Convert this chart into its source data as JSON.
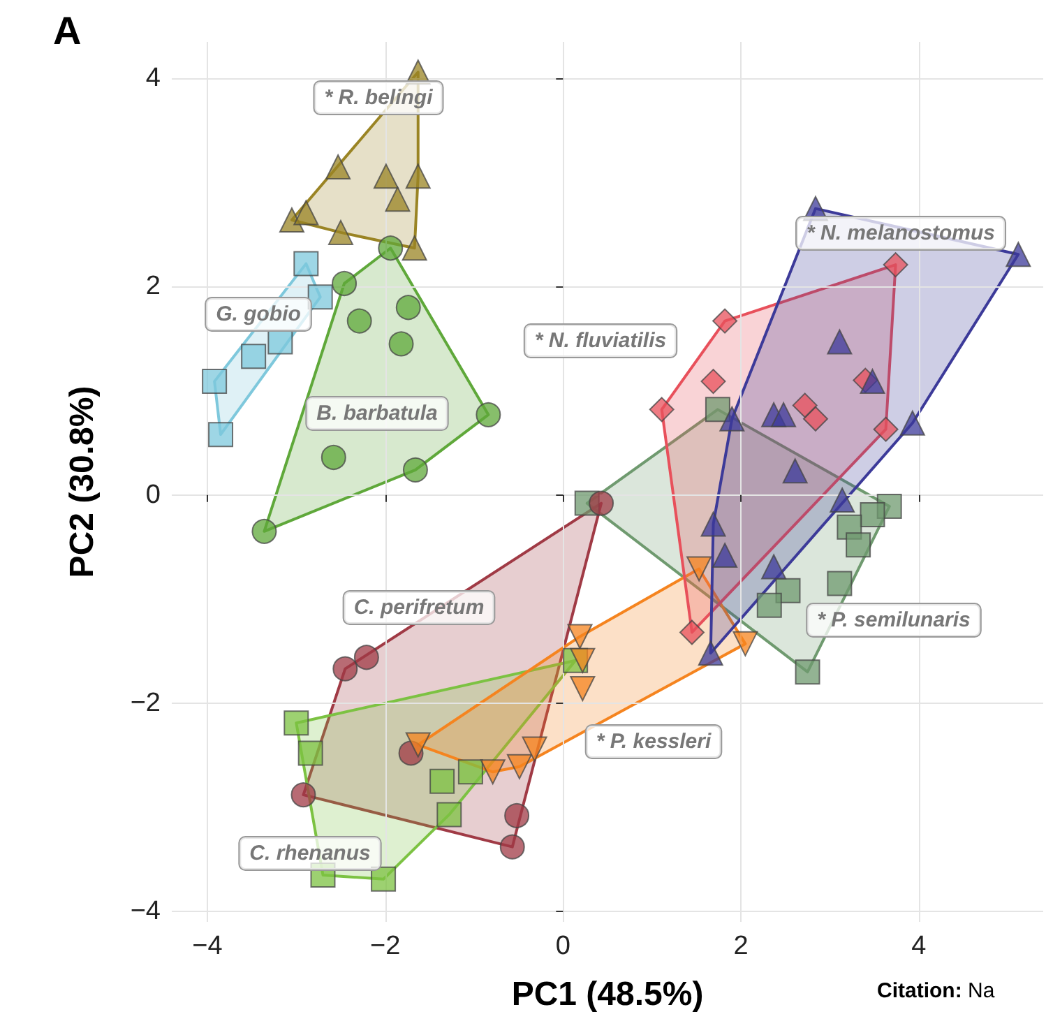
{
  "chart_data": {
    "type": "scatter",
    "xlabel": "PC1 (48.5%)",
    "ylabel": "PC2 (30.8%)",
    "xlim": [
      -4.4,
      5.4
    ],
    "ylim": [
      -4.1,
      4.35
    ],
    "xticks": [
      -4,
      -2,
      0,
      2,
      4
    ],
    "yticks": [
      -4,
      -2,
      0,
      2,
      4
    ],
    "grid": true,
    "legend": false,
    "series": [
      {
        "name": "* R. belingi",
        "color": "#9a8424",
        "marker": "triangle",
        "x": [
          -1.63,
          -2.53,
          -1.99,
          -1.63,
          -1.86,
          -3.05,
          -2.89,
          -2.5,
          -1.67
        ],
        "values": [
          4.06,
          3.15,
          3.06,
          3.06,
          2.84,
          2.64,
          2.71,
          2.52,
          2.37
        ]
      },
      {
        "name": "G. gobio",
        "color": "#7ec8dc",
        "marker": "square",
        "x": [
          -2.89,
          -2.73,
          -3.18,
          -3.48,
          -3.92,
          -3.85
        ],
        "values": [
          2.22,
          1.9,
          1.47,
          1.33,
          1.09,
          0.58
        ]
      },
      {
        "name": "B. barbatula",
        "color": "#5fa83a",
        "marker": "circle",
        "x": [
          -2.46,
          -1.94,
          -2.29,
          -1.74,
          -1.82,
          -0.84,
          -2.58,
          -1.66,
          -3.36
        ],
        "values": [
          2.03,
          2.37,
          1.67,
          1.8,
          1.45,
          0.77,
          0.36,
          0.24,
          -0.35
        ]
      },
      {
        "name": "* P. semilunaris",
        "color": "#6f9a6f",
        "marker": "square",
        "x": [
          1.74,
          0.27,
          3.67,
          3.48,
          3.22,
          3.32,
          3.11,
          2.53,
          2.32,
          2.75
        ],
        "values": [
          0.82,
          -0.08,
          -0.11,
          -0.19,
          -0.31,
          -0.48,
          -0.85,
          -0.92,
          -1.06,
          -1.7
        ]
      },
      {
        "name": "C. perifretum",
        "color": "#a03a45",
        "marker": "circle",
        "x": [
          -2.45,
          -2.21,
          -2.92,
          -1.71,
          -0.52,
          -0.57,
          0.43
        ],
        "values": [
          -1.67,
          -1.56,
          -2.88,
          -2.48,
          -3.08,
          -3.38,
          -0.08
        ]
      },
      {
        "name": "C. rhenanus",
        "color": "#7cc242",
        "marker": "square",
        "x": [
          -3.0,
          -2.84,
          -1.36,
          -1.04,
          -1.28,
          -2.7,
          -2.02,
          0.14
        ],
        "values": [
          -2.19,
          -2.48,
          -2.75,
          -2.66,
          -3.07,
          -3.65,
          -3.69,
          -1.59
        ]
      },
      {
        "name": "* P. kessleri",
        "color": "#f5841f",
        "marker": "triangle-down",
        "x": [
          1.53,
          0.19,
          0.22,
          0.22,
          2.05,
          -1.63,
          -0.79,
          -0.49,
          -0.32
        ],
        "values": [
          -0.71,
          -1.36,
          -1.59,
          -1.86,
          -1.43,
          -2.4,
          -2.66,
          -2.61,
          -2.44
        ]
      },
      {
        "name": "* N. fluviatilis",
        "color": "#e8505b",
        "marker": "diamond",
        "x": [
          3.74,
          1.82,
          1.69,
          1.11,
          3.4,
          2.84,
          3.63,
          1.45,
          2.72
        ],
        "values": [
          2.21,
          1.67,
          1.09,
          0.82,
          1.1,
          0.73,
          0.63,
          -1.32,
          0.86
        ]
      },
      {
        "name": "* N. melanostomus",
        "color": "#3c3a99",
        "marker": "triangle",
        "x": [
          2.84,
          5.12,
          3.11,
          3.48,
          2.37,
          2.48,
          3.93,
          2.61,
          3.14,
          1.69,
          1.82,
          2.37,
          1.66,
          1.9
        ],
        "values": [
          2.75,
          2.31,
          1.47,
          1.09,
          0.77,
          0.77,
          0.69,
          0.23,
          -0.05,
          -0.28,
          -0.58,
          -0.69,
          -1.52,
          0.73
        ]
      }
    ],
    "annotations": [
      "A",
      "Citation: Na"
    ]
  }
}
